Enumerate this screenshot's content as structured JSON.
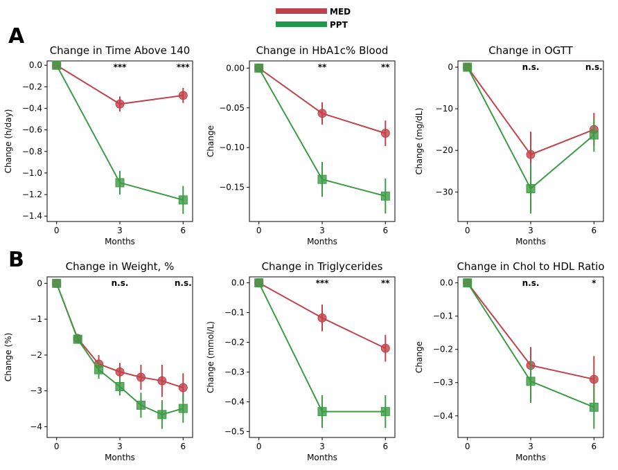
{
  "panel_labels": [
    "A",
    "B"
  ],
  "legend": [
    {
      "label": "MED",
      "color": "#c0424a"
    },
    {
      "label": "PPT",
      "color": "#1f9a4a"
    }
  ],
  "colors": {
    "MED": "#c0424a",
    "PPT": "#3d9a45"
  },
  "chart_data": [
    {
      "type": "line",
      "title": "Change in Time Above 140",
      "xlabel": "Months",
      "ylabel": "Change (h/day)",
      "xticks": [
        0,
        3,
        6
      ],
      "ylim": [
        -1.45,
        0.04
      ],
      "yticks": [
        0,
        -0.2,
        -0.4,
        -0.6,
        -0.8,
        -1.0,
        -1.2,
        -1.4
      ],
      "ytick_labels": [
        "0.0",
        "−0.2",
        "−0.4",
        "−0.6",
        "−0.8",
        "−1.0",
        "−1.2",
        "−1.4"
      ],
      "significance": [
        {
          "x": 3,
          "label": "***"
        },
        {
          "x": 6,
          "label": "***"
        }
      ],
      "series": [
        {
          "name": "MED",
          "marker": "circle",
          "x": [
            0,
            3,
            6
          ],
          "y": [
            0,
            -0.36,
            -0.28
          ],
          "err": [
            0,
            0.07,
            0.07
          ]
        },
        {
          "name": "PPT",
          "marker": "square",
          "x": [
            0,
            3,
            6
          ],
          "y": [
            0,
            -1.09,
            -1.25
          ],
          "err": [
            0,
            0.11,
            0.13
          ]
        }
      ]
    },
    {
      "type": "line",
      "title": "Change in HbA1c% Blood",
      "xlabel": "Months",
      "ylabel": "Change",
      "xticks": [
        0,
        3,
        6
      ],
      "ylim": [
        -0.193,
        0.009
      ],
      "yticks": [
        0,
        -0.05,
        -0.1,
        -0.15
      ],
      "ytick_labels": [
        "0.00",
        "−0.05",
        "−0.10",
        "−0.15"
      ],
      "significance": [
        {
          "x": 3,
          "label": "**"
        },
        {
          "x": 6,
          "label": "**"
        }
      ],
      "series": [
        {
          "name": "MED",
          "marker": "circle",
          "x": [
            0,
            3,
            6
          ],
          "y": [
            0,
            -0.057,
            -0.082
          ],
          "err": [
            0,
            0.014,
            0.016
          ]
        },
        {
          "name": "PPT",
          "marker": "square",
          "x": [
            0,
            3,
            6
          ],
          "y": [
            0,
            -0.14,
            -0.161
          ],
          "err": [
            0,
            0.022,
            0.022
          ]
        }
      ]
    },
    {
      "type": "line",
      "title": "Change in OGTT",
      "xlabel": "Months",
      "ylabel": "Change (mg/dL)",
      "xticks": [
        0,
        3,
        6
      ],
      "ylim": [
        -37.1,
        1.5
      ],
      "yticks": [
        0,
        -10,
        -20,
        -30
      ],
      "ytick_labels": [
        "0",
        "−10",
        "−20",
        "−30"
      ],
      "significance": [
        {
          "x": 3,
          "label": "n.s."
        },
        {
          "x": 6,
          "label": "n.s."
        }
      ],
      "series": [
        {
          "name": "MED",
          "marker": "circle",
          "x": [
            0,
            3,
            6
          ],
          "y": [
            0,
            -21,
            -15
          ],
          "err": [
            0,
            5.5,
            4
          ]
        },
        {
          "name": "PPT",
          "marker": "square",
          "x": [
            0,
            3,
            6
          ],
          "y": [
            0,
            -29.2,
            -16.3
          ],
          "err": [
            0,
            6,
            4
          ]
        }
      ]
    },
    {
      "type": "line",
      "title": "Change in Weight, %",
      "xlabel": "Months",
      "ylabel": "Change (%)",
      "xticks": [
        0,
        3,
        6
      ],
      "ylim": [
        -4.3,
        0.18
      ],
      "yticks": [
        0,
        -1,
        -2,
        -3,
        -4
      ],
      "ytick_labels": [
        "0",
        "−1",
        "−2",
        "−3",
        "−4"
      ],
      "significance": [
        {
          "x": 3,
          "label": "n.s."
        },
        {
          "x": 6,
          "label": "n.s."
        }
      ],
      "series": [
        {
          "name": "MED",
          "marker": "circle",
          "x": [
            0,
            1,
            2,
            3,
            4,
            5,
            6
          ],
          "y": [
            0,
            -1.54,
            -2.25,
            -2.47,
            -2.62,
            -2.72,
            -2.91
          ],
          "err": [
            0,
            0.13,
            0.25,
            0.25,
            0.35,
            0.45,
            0.4
          ]
        },
        {
          "name": "PPT",
          "marker": "square",
          "x": [
            0,
            1,
            2,
            3,
            4,
            5,
            6
          ],
          "y": [
            0,
            -1.56,
            -2.41,
            -2.88,
            -3.4,
            -3.66,
            -3.49
          ],
          "err": [
            0,
            0.12,
            0.25,
            0.25,
            0.35,
            0.4,
            0.4
          ]
        }
      ]
    },
    {
      "type": "line",
      "title": "Change in Triglycerides",
      "xlabel": "Months",
      "ylabel": "Change (mmol/L)",
      "xticks": [
        0,
        3,
        6
      ],
      "ylim": [
        -0.52,
        0.02
      ],
      "yticks": [
        0,
        -0.1,
        -0.2,
        -0.3,
        -0.4,
        -0.5
      ],
      "ytick_labels": [
        "0.0",
        "−0.1",
        "−0.2",
        "−0.3",
        "−0.4",
        "−0.5"
      ],
      "significance": [
        {
          "x": 3,
          "label": "***"
        },
        {
          "x": 6,
          "label": "**"
        }
      ],
      "series": [
        {
          "name": "MED",
          "marker": "circle",
          "x": [
            0,
            3,
            6
          ],
          "y": [
            0,
            -0.118,
            -0.22
          ],
          "err": [
            0,
            0.045,
            0.045
          ]
        },
        {
          "name": "PPT",
          "marker": "square",
          "x": [
            0,
            3,
            6
          ],
          "y": [
            0,
            -0.433,
            -0.433
          ],
          "err": [
            0,
            0.055,
            0.055
          ]
        }
      ]
    },
    {
      "type": "line",
      "title": "Change in Chol to HDL Ratio",
      "xlabel": "Months",
      "ylabel": "Change",
      "xticks": [
        0,
        3,
        6
      ],
      "ylim": [
        -0.465,
        0.018
      ],
      "yticks": [
        0,
        -0.1,
        -0.2,
        -0.3,
        -0.4
      ],
      "ytick_labels": [
        "0.0",
        "−0.1",
        "−0.2",
        "−0.3",
        "−0.4"
      ],
      "significance": [
        {
          "x": 3,
          "label": "n.s."
        },
        {
          "x": 6,
          "label": "*"
        }
      ],
      "series": [
        {
          "name": "MED",
          "marker": "circle",
          "x": [
            0,
            3,
            6
          ],
          "y": [
            0,
            -0.248,
            -0.29
          ],
          "err": [
            0,
            0.055,
            0.07
          ]
        },
        {
          "name": "PPT",
          "marker": "square",
          "x": [
            0,
            3,
            6
          ],
          "y": [
            0,
            -0.296,
            -0.374
          ],
          "err": [
            0,
            0.065,
            0.065
          ]
        }
      ]
    }
  ]
}
